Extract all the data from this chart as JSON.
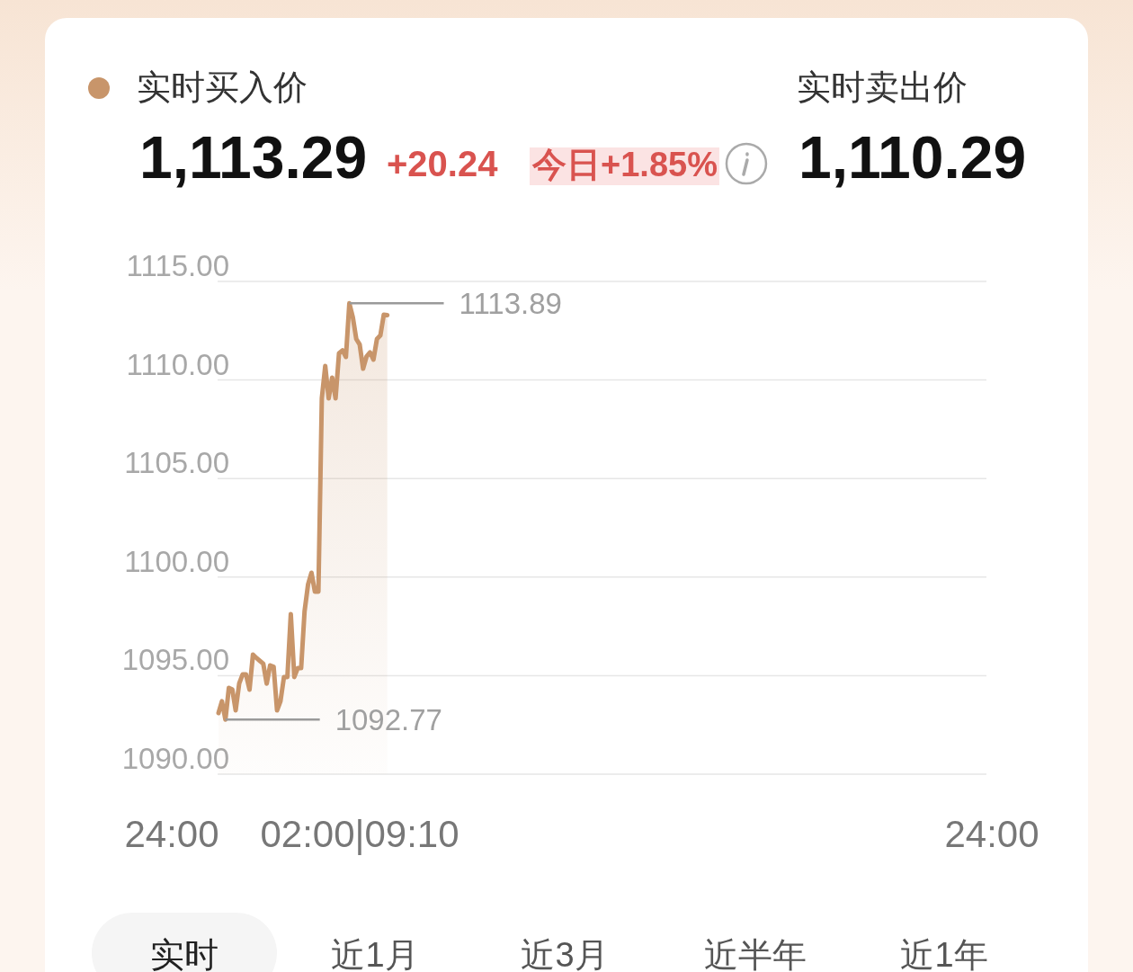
{
  "chart_data": {
    "type": "area",
    "categories": [
      null,
      null,
      null,
      null,
      null,
      null,
      null,
      null,
      null,
      null,
      null,
      null,
      null,
      null,
      null,
      null,
      null,
      null,
      null,
      null,
      null,
      null,
      null,
      null,
      null,
      null,
      null,
      null,
      null,
      null,
      null,
      null,
      null,
      null,
      null,
      null,
      null,
      null,
      null,
      null,
      null,
      null,
      null,
      null,
      null,
      null,
      null,
      null,
      null,
      null,
      null,
      null,
      null,
      null,
      null,
      null,
      null,
      null,
      null,
      null,
      null,
      null,
      null,
      null,
      null,
      null,
      null,
      null,
      null,
      null,
      null,
      null,
      null,
      null,
      null,
      null,
      null,
      null,
      null,
      null,
      null,
      null,
      null,
      null,
      null,
      null,
      null,
      null,
      null,
      null,
      null,
      null,
      null,
      null,
      null,
      null,
      null,
      null,
      null,
      null,
      null,
      null,
      null,
      null,
      null,
      null,
      null,
      null,
      null,
      null,
      null,
      null,
      null,
      null,
      null,
      null,
      null,
      null,
      null,
      null,
      null,
      null,
      null,
      null,
      null,
      null,
      null,
      null,
      null,
      null,
      null,
      null,
      null,
      null,
      null,
      null,
      null,
      null,
      null,
      null,
      null,
      null,
      null,
      null,
      null,
      null,
      null,
      null,
      null,
      null,
      null,
      null,
      null,
      null,
      null,
      null,
      null,
      null,
      null,
      null,
      null,
      null,
      null,
      null,
      null,
      null,
      null,
      null,
      null,
      null,
      null,
      null,
      null,
      null,
      null,
      null,
      null,
      null,
      null,
      null,
      null,
      null,
      null,
      null,
      null,
      null,
      null,
      null,
      null,
      null,
      null,
      null,
      null,
      null,
      null,
      null,
      null,
      null,
      null,
      null,
      null,
      null,
      null,
      null,
      null,
      null,
      null,
      null,
      null,
      null,
      null,
      null,
      null,
      null,
      null,
      null,
      null,
      null,
      null,
      null,
      null,
      null,
      null,
      null
    ],
    "series": [
      {
        "name": "实时买入价",
        "color": "#c8956a",
        "values": [
          1093.1,
          1093.7,
          1092.77,
          1094.38,
          1094.3,
          1093.24,
          1094.6,
          1095.06,
          1095.06,
          1094.29,
          1096.07,
          1095.9,
          1095.75,
          1095.6,
          1094.6,
          1095.52,
          1095.45,
          1093.24,
          1093.7,
          1094.93,
          1094.93,
          1098.12,
          1094.93,
          1095.38,
          1095.38,
          1098.26,
          1099.63,
          1100.22,
          1099.26,
          1099.26,
          1109.07,
          1110.71,
          1109.07,
          1110.12,
          1109.07,
          1111.35,
          1111.5,
          1111.17,
          1113.89,
          1113.18,
          1112.08,
          1111.8,
          1110.57,
          1111.2,
          1111.4,
          1111.03,
          1112.08,
          1112.26,
          1113.31,
          1113.29,
          null,
          null,
          null,
          null,
          null,
          null,
          null,
          null,
          null,
          null,
          null,
          null,
          null,
          null,
          null,
          null,
          null,
          null,
          null,
          null,
          null,
          null,
          null,
          null,
          null,
          null,
          null,
          null,
          null,
          null,
          null,
          null,
          null,
          null,
          null,
          null,
          null,
          null,
          null,
          null,
          null,
          null,
          null,
          null,
          null,
          null,
          null,
          null,
          null,
          null,
          null,
          null,
          null,
          null,
          null,
          null,
          null,
          null,
          null,
          null,
          null,
          null,
          null,
          null,
          null,
          null,
          null,
          null,
          null,
          null,
          null,
          null,
          null,
          null,
          null,
          null,
          null,
          null,
          null,
          null,
          null,
          null,
          null,
          null,
          null,
          null,
          null,
          null,
          null,
          null,
          null,
          null,
          null,
          null,
          null,
          null,
          null,
          null,
          null,
          null,
          null,
          null,
          null,
          null,
          null,
          null,
          null,
          null,
          null,
          null,
          null,
          null,
          null,
          null,
          null,
          null,
          null,
          null,
          null,
          null,
          null,
          null,
          null,
          null,
          null,
          null,
          null,
          null,
          null,
          null,
          null,
          null,
          null,
          null,
          null,
          null,
          null,
          null,
          null,
          null,
          null,
          null,
          null,
          null,
          null,
          null,
          null,
          null,
          null,
          null,
          null,
          null,
          null,
          null,
          null,
          null,
          null,
          null,
          null,
          null,
          null,
          null,
          null,
          null,
          null,
          null,
          null,
          null,
          null,
          null,
          null,
          null,
          null,
          null
        ]
      }
    ],
    "ylim": [
      1090,
      1115
    ],
    "yticks": [
      {
        "value": 1090,
        "label": "1090.00"
      },
      {
        "value": 1095,
        "label": "1095.00"
      },
      {
        "value": 1100,
        "label": "1100.00"
      },
      {
        "value": 1105,
        "label": "1105.00"
      },
      {
        "value": 1110,
        "label": "1110.00"
      },
      {
        "value": 1115,
        "label": "1115.00"
      }
    ],
    "grid": "y",
    "legend": "top left",
    "annotations": [
      "1113.89",
      "1092.77",
      "1,113.29",
      "+20.24",
      "今日+1.85%",
      "实时卖出价",
      "1,110.29",
      "实时",
      "近1月",
      "近3月",
      "近半年",
      "近1年",
      "24:00",
      "02:00|09:10",
      "24:00"
    ]
  }
}
